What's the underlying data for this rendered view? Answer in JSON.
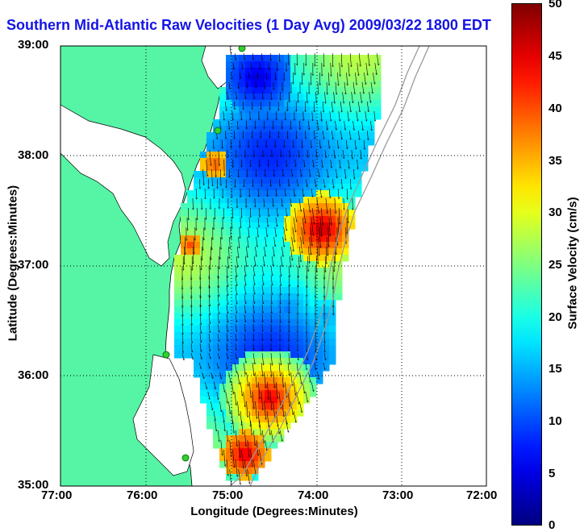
{
  "title": "Southern Mid-Atlantic Raw Velocities (1 Day Avg) 2009/03/22 1800 EDT",
  "axes": {
    "xlabel": "Longitude (Degrees:Minutes)",
    "ylabel": "Latitude (Degrees:Minutes)",
    "xticks": [
      "77:00",
      "76:00",
      "75:00",
      "74:00",
      "73:00",
      "72:00"
    ],
    "yticks": [
      "39:00",
      "38:00",
      "37:00",
      "36:00",
      "35:00"
    ],
    "grid": "dotted"
  },
  "colorbar": {
    "label": "Surface Velocity (cm/s)",
    "ticks": [
      "50",
      "45",
      "40",
      "35",
      "30",
      "25",
      "20",
      "15",
      "10",
      "5",
      "0"
    ],
    "min": 0,
    "max": 50,
    "colormap": "jet"
  },
  "colors": {
    "land": "#55f5a5",
    "title": "#1414e6",
    "coast_line": "#000000",
    "shelf_contour": "#9a9a9a",
    "station_marker": "#30d030"
  },
  "stations": 4
}
